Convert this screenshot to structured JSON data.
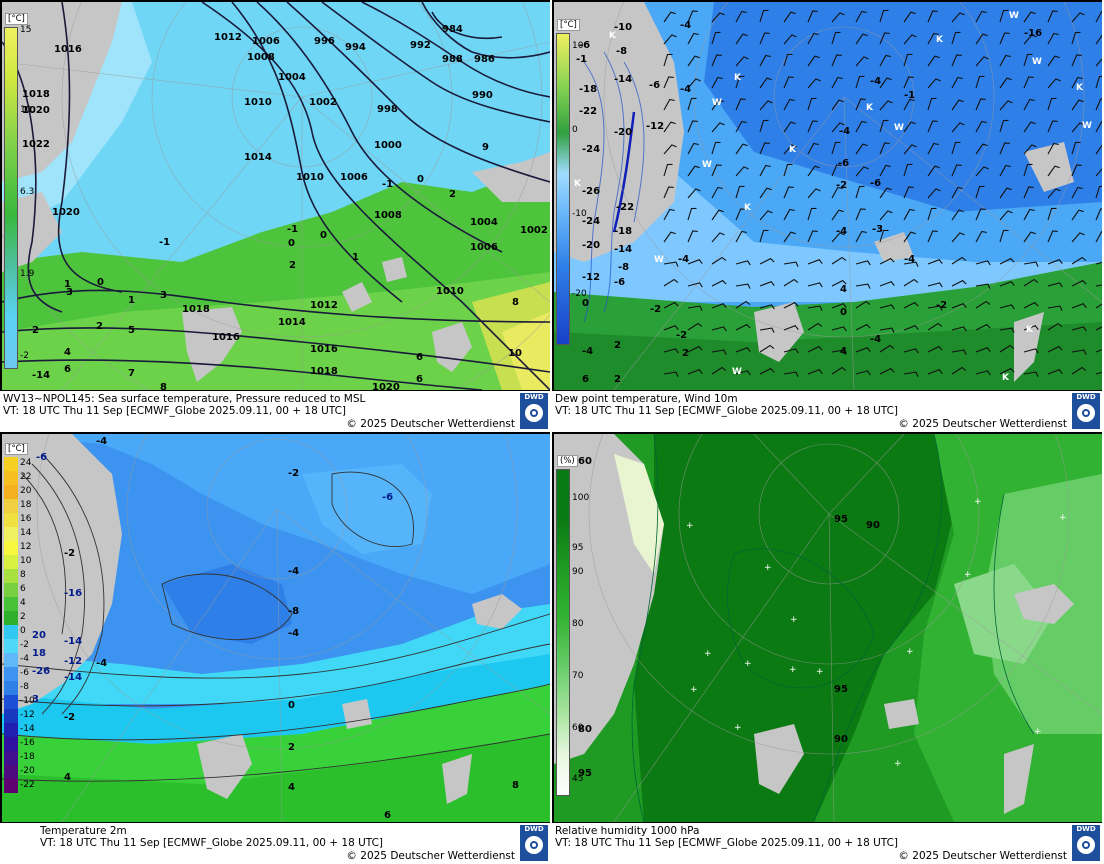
{
  "panels": [
    {
      "id": "sst_mslp",
      "caption_line1": "WV13~NPOL145: Sea surface temperature,  Pressure reduced to MSL",
      "caption_line2": "VT: 18 UTC Thu  11 Sep [ECMWF_Globe 2025.09.11, 00 + 18 UTC]",
      "copyright": "© 2025 Deutscher Wetterdienst",
      "logo_text": "DWD",
      "legend_unit": "[°C]",
      "legend_labels": [
        "15",
        "10.",
        "6.3",
        "1.9",
        "-2"
      ],
      "isobar_labels": [
        "1016",
        "1012",
        "1006",
        "1008",
        "996",
        "994",
        "984",
        "992",
        "988",
        "986",
        "1004",
        "990",
        "1018",
        "1020",
        "1010",
        "1002",
        "998",
        "1022",
        "1000",
        "1014",
        "1010",
        "1006",
        "1008",
        "1004",
        "1006",
        "1002",
        "1020",
        "1018",
        "1016",
        "1014",
        "1012",
        "1010",
        "1016",
        "1018",
        "1020"
      ],
      "temp_labels": [
        "-1",
        "0",
        "2",
        "-1",
        "0",
        "-1",
        "0",
        "2",
        "1",
        "0",
        "3",
        "1",
        "2",
        "5",
        "4",
        "6",
        "7",
        "8",
        "-14",
        "2",
        "3",
        "9",
        "8",
        "10",
        "6",
        "6",
        "1"
      ]
    },
    {
      "id": "dewpoint_wind",
      "caption_line1": "Dew point temperature, Wind 10m",
      "caption_line2": "VT: 18 UTC Thu  11 Sep [ECMWF_Globe 2025.09.11,  00 + 18 UTC]",
      "copyright": "© 2025 Deutscher Wetterdienst",
      "logo_text": "DWD",
      "legend_unit": "[°C]",
      "legend_labels": [
        "10",
        "0",
        "-10",
        "-20"
      ],
      "value_labels": [
        "-10",
        "-4",
        "-6",
        "-8",
        "-1",
        "-16",
        "-14",
        "-6",
        "-4",
        "-18",
        "-22",
        "-20",
        "-12",
        "-4",
        "-24",
        "-26",
        "-22",
        "-24",
        "-18",
        "-20",
        "-14",
        "-12",
        "-6",
        "-8",
        "-4",
        "-6",
        "-2",
        "-4",
        "0",
        "-2",
        "2",
        "-4",
        "6",
        "2",
        "0",
        "4",
        "-2",
        "-4",
        "-3",
        "-4",
        "-6",
        "-4",
        "-2",
        "-1",
        "4",
        "2"
      ],
      "station_labels": [
        "K",
        "W",
        "W",
        "K",
        "K",
        "K",
        "W",
        "K",
        "K",
        "W",
        "K",
        "W",
        "W",
        "K",
        "W",
        "K",
        "K",
        "W"
      ]
    },
    {
      "id": "t2m",
      "caption_line1": "Temperature 2m",
      "caption_line2": "VT: 18 UTC Thu  11 Sep [ECMWF_Globe 2025.09.11, 00 + 18 UTC]",
      "copyright": "© 2025 Deutscher Wetterdienst",
      "logo_text": "DWD",
      "legend_unit": "[°C]",
      "legend_labels": [
        "24",
        "22",
        "20",
        "18",
        "16",
        "14",
        "12",
        "10",
        "8",
        "6",
        "4",
        "2",
        "0",
        "-2",
        "-4",
        "-6",
        "-8",
        "-10",
        "-12",
        "-14",
        "-16",
        "-18",
        "-20",
        "-22"
      ],
      "value_labels": [
        "-4",
        "-6",
        "-2",
        "-2",
        "-6",
        "-4",
        "-8",
        "-4",
        "-16",
        "-14",
        "-12",
        "-14",
        "-26",
        "-4",
        "-2",
        "0",
        "2",
        "4",
        "6",
        "8",
        "20",
        "18",
        "3",
        "4"
      ]
    },
    {
      "id": "rh1000",
      "caption_line1": "Relative humidity 1000 hPa",
      "caption_line2": "VT: 18 UTC Thu  11 Sep [ECMWF_Globe 2025.09.11,  00 + 18 UTC]",
      "copyright": "© 2025 Deutscher Wetterdienst",
      "logo_text": "DWD",
      "legend_unit": "(%)",
      "legend_labels": [
        "100",
        "95",
        "90",
        "80",
        "70",
        "60",
        "45"
      ],
      "value_labels": [
        "60",
        "95",
        "90",
        "95",
        "90",
        "80",
        "95"
      ]
    }
  ],
  "colors": {
    "sea_cold": "#5ad2f4",
    "sea_light": "#80dcf8",
    "green_dark": "#2ca02c",
    "green_mid": "#52c83a",
    "green_light": "#7ed957",
    "yellow": "#e8e860",
    "land_grey": "#c8c8c8",
    "blue_deep": "#1c4fd8",
    "blue_mid": "#3c8cf0",
    "blue_light": "#6ab6ff",
    "rh_dark": "#0a7a12",
    "rh_mid": "#21a020",
    "rh_light": "#6ed36e",
    "rh_pale": "#b8ebb0"
  }
}
